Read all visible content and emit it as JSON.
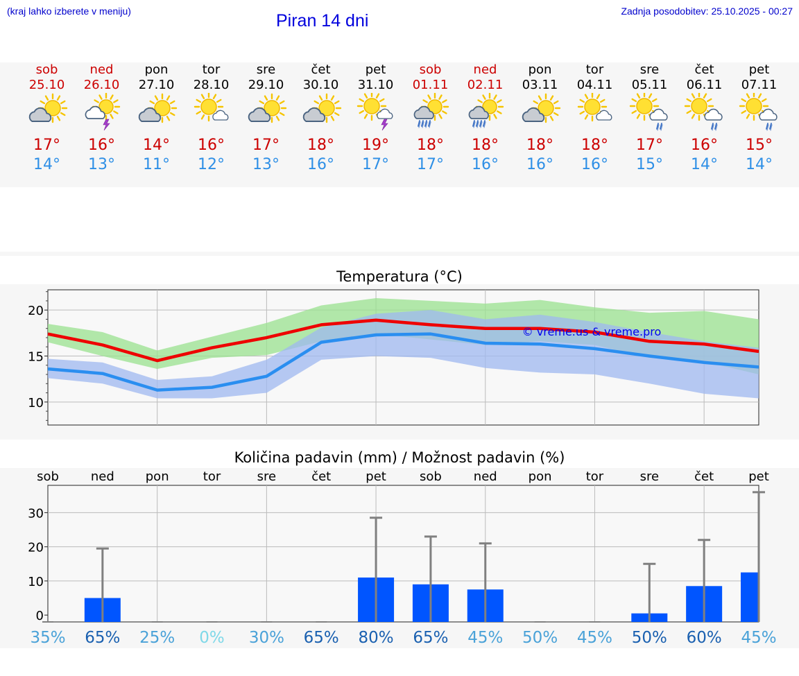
{
  "header": {
    "hint": "(kraj lahko izberete v meniju)",
    "title": "Piran 14 dni",
    "updated": "Zadnja posodobitev: 25.10.2025 - 00:27"
  },
  "days": [
    {
      "name": "sob",
      "date": "25.10",
      "weekend": true,
      "icon": "partly-cloudy-icon",
      "tmax": "17°",
      "tmin": "14°"
    },
    {
      "name": "ned",
      "date": "26.10",
      "weekend": true,
      "icon": "thunderstorm-icon",
      "tmax": "16°",
      "tmin": "13°"
    },
    {
      "name": "pon",
      "date": "27.10",
      "weekend": false,
      "icon": "partly-cloudy-icon",
      "tmax": "14°",
      "tmin": "11°"
    },
    {
      "name": "tor",
      "date": "28.10",
      "weekend": false,
      "icon": "mostly-sunny-icon",
      "tmax": "16°",
      "tmin": "12°"
    },
    {
      "name": "sre",
      "date": "29.10",
      "weekend": false,
      "icon": "partly-cloudy-icon",
      "tmax": "17°",
      "tmin": "13°"
    },
    {
      "name": "čet",
      "date": "30.10",
      "weekend": false,
      "icon": "partly-cloudy-icon",
      "tmax": "18°",
      "tmin": "16°"
    },
    {
      "name": "pet",
      "date": "31.10",
      "weekend": false,
      "icon": "sun-thunder-icon",
      "tmax": "19°",
      "tmin": "17°"
    },
    {
      "name": "sob",
      "date": "01.11",
      "weekend": true,
      "icon": "rain-showers-icon",
      "tmax": "18°",
      "tmin": "17°"
    },
    {
      "name": "ned",
      "date": "02.11",
      "weekend": true,
      "icon": "rain-showers-icon",
      "tmax": "18°",
      "tmin": "16°"
    },
    {
      "name": "pon",
      "date": "03.11",
      "weekend": false,
      "icon": "partly-cloudy-icon",
      "tmax": "18°",
      "tmin": "16°"
    },
    {
      "name": "tor",
      "date": "04.11",
      "weekend": false,
      "icon": "mostly-sunny-icon",
      "tmax": "18°",
      "tmin": "16°"
    },
    {
      "name": "sre",
      "date": "05.11",
      "weekend": false,
      "icon": "sun-rain-icon",
      "tmax": "17°",
      "tmin": "15°"
    },
    {
      "name": "čet",
      "date": "06.11",
      "weekend": false,
      "icon": "sun-rain-icon",
      "tmax": "16°",
      "tmin": "14°"
    },
    {
      "name": "pet",
      "date": "07.11",
      "weekend": false,
      "icon": "sun-rain-icon",
      "tmax": "15°",
      "tmin": "14°"
    }
  ],
  "colors": {
    "weekend": "#cc0000",
    "tmax": "#cc0000",
    "tmin": "#2e8fe6",
    "max_line": "#ee0000",
    "min_line": "#2a8ef0",
    "max_band": "#9ae18f",
    "min_band": "#9fb8f0",
    "precip_bar": "#0055ff",
    "whisker": "#808080"
  },
  "chart_data": [
    {
      "type": "line",
      "title": "Temperatura (°C)",
      "watermark": "© vreme.us & vreme.pro",
      "ylim": [
        7.5,
        22.2
      ],
      "yticks": [
        10,
        15,
        20
      ],
      "grid": true,
      "x": [
        0,
        1,
        2,
        3,
        4,
        5,
        6,
        7,
        8,
        9,
        10,
        11,
        12,
        13
      ],
      "series": [
        {
          "key": "max",
          "values": [
            17.4,
            16.2,
            14.5,
            15.9,
            17.0,
            18.4,
            18.9,
            18.4,
            18.0,
            18.0,
            17.6,
            16.6,
            16.3,
            15.5
          ],
          "band_low": [
            16.5,
            15.0,
            13.6,
            14.8,
            15.1,
            16.6,
            17.4,
            16.8,
            16.2,
            16.6,
            16.2,
            14.8,
            14.4,
            13.0
          ],
          "band_high": [
            18.5,
            17.6,
            15.6,
            17.1,
            18.6,
            20.5,
            21.3,
            21.0,
            20.7,
            21.1,
            20.3,
            19.7,
            19.9,
            19.0
          ]
        },
        {
          "key": "min",
          "values": [
            13.6,
            13.1,
            11.3,
            11.6,
            12.8,
            16.5,
            17.3,
            17.4,
            16.4,
            16.3,
            15.8,
            15.0,
            14.3,
            13.8
          ],
          "band_low": [
            12.6,
            12.0,
            10.4,
            10.4,
            11.0,
            14.6,
            15.0,
            14.8,
            13.7,
            13.2,
            13.0,
            12.0,
            10.9,
            10.4
          ],
          "band_high": [
            14.7,
            14.3,
            12.4,
            12.8,
            14.6,
            18.1,
            19.6,
            20.0,
            19.0,
            19.5,
            18.7,
            17.6,
            16.6,
            15.9
          ]
        }
      ]
    },
    {
      "type": "bar",
      "title": "Količina padavin (mm) / Možnost padavin (%)",
      "categories": [
        "sob",
        "ned",
        "pon",
        "tor",
        "sre",
        "čet",
        "pet",
        "sob",
        "ned",
        "pon",
        "tor",
        "sre",
        "čet",
        "pet"
      ],
      "ylim": [
        -2,
        38
      ],
      "yticks": [
        0,
        10,
        20,
        30
      ],
      "grid": true,
      "values": [
        0,
        5,
        0,
        0,
        0,
        0,
        11,
        9,
        7.5,
        0,
        0,
        0.5,
        8.5,
        12.5
      ],
      "max_values": [
        0,
        19.5,
        0,
        0,
        0,
        0,
        28.5,
        23,
        21,
        0,
        0,
        15,
        22,
        36
      ],
      "probability": [
        {
          "label": "35%",
          "color": "#4aa2d8"
        },
        {
          "label": "65%",
          "color": "#1a60b0"
        },
        {
          "label": "25%",
          "color": "#4aa2d8"
        },
        {
          "label": "0%",
          "color": "#7fd8e8"
        },
        {
          "label": "30%",
          "color": "#4aa2d8"
        },
        {
          "label": "65%",
          "color": "#1a60b0"
        },
        {
          "label": "80%",
          "color": "#1a60b0"
        },
        {
          "label": "65%",
          "color": "#1a60b0"
        },
        {
          "label": "45%",
          "color": "#4aa2d8"
        },
        {
          "label": "50%",
          "color": "#4aa2d8"
        },
        {
          "label": "45%",
          "color": "#4aa2d8"
        },
        {
          "label": "50%",
          "color": "#1a60b0"
        },
        {
          "label": "60%",
          "color": "#1a60b0"
        },
        {
          "label": "45%",
          "color": "#4aa2d8"
        }
      ]
    }
  ]
}
